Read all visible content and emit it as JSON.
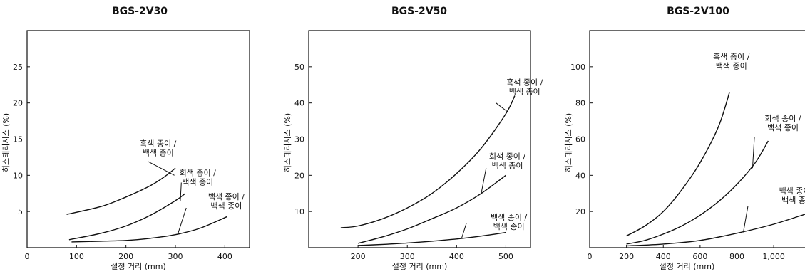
{
  "chart_data": [
    {
      "type": "line",
      "title": "BGS-2V30",
      "xlabel": "설정 거리 (mm)",
      "ylabel": "히스테리시스 (%)",
      "xlim": [
        0,
        450
      ],
      "ylim": [
        0,
        30
      ],
      "xticks": [
        0,
        100,
        200,
        300,
        400
      ],
      "yticks": [
        5,
        10,
        15,
        20,
        25
      ],
      "series": [
        {
          "name": "흑색 종이 / 백색 종이",
          "x": [
            80,
            150,
            200,
            250,
            280,
            300
          ],
          "y": [
            4.6,
            5.7,
            7.0,
            8.6,
            9.9,
            11.0
          ]
        },
        {
          "name": "회색 종이 / 백색 종이",
          "x": [
            85,
            150,
            200,
            250,
            300,
            320
          ],
          "y": [
            1.1,
            2.0,
            3.0,
            4.5,
            6.5,
            7.5
          ]
        },
        {
          "name": "백색 종이 / 백색 종이",
          "x": [
            90,
            150,
            200,
            250,
            300,
            350,
            405
          ],
          "y": [
            0.8,
            0.9,
            1.0,
            1.3,
            1.8,
            2.7,
            4.3
          ]
        }
      ],
      "annotations": [
        {
          "line1": "흑색 종이 /",
          "line2": "백색 종이",
          "x": 265,
          "y": 14.0,
          "pointer": [
            [
              245,
              11.9
            ],
            [
              298,
              10.0
            ]
          ]
        },
        {
          "line1": "회색 종이 /",
          "line2": "백색 종이",
          "x": 345,
          "y": 10.0,
          "pointer": [
            [
              312,
              9.0
            ],
            [
              310,
              6.5
            ]
          ]
        },
        {
          "line1": "백색 종이 /",
          "line2": "백색 종이",
          "x": 403,
          "y": 6.7,
          "pointer": [
            [
              322,
              5.5
            ],
            [
              305,
              1.9
            ]
          ]
        }
      ]
    },
    {
      "type": "line",
      "title": "BGS-2V50",
      "xlabel": "설정 거리 (mm)",
      "ylabel": "히스테리시스 (%)",
      "xlim": [
        100,
        550
      ],
      "ylim": [
        0,
        60
      ],
      "xticks": [
        200,
        300,
        400,
        500
      ],
      "yticks": [
        10,
        20,
        30,
        40,
        50
      ],
      "series": [
        {
          "name": "흑색 종이 / 백색 종이",
          "x": [
            165,
            200,
            250,
            300,
            350,
            400,
            450,
            500,
            518
          ],
          "y": [
            5.5,
            6.0,
            8.0,
            11.0,
            15.0,
            20.5,
            27.5,
            37.0,
            42.0
          ]
        },
        {
          "name": "회색 종이 / 백색 종이",
          "x": [
            200,
            250,
            300,
            350,
            400,
            450,
            500
          ],
          "y": [
            1.2,
            3.0,
            5.2,
            8.0,
            11.0,
            15.0,
            20.0
          ]
        },
        {
          "name": "백색 종이 / 백색 종이",
          "x": [
            200,
            250,
            300,
            350,
            400,
            450,
            500
          ],
          "y": [
            0.6,
            0.9,
            1.3,
            1.8,
            2.4,
            3.2,
            4.2
          ]
        }
      ],
      "annotations": [
        {
          "line1": "흑색 종이 /",
          "line2": "백색 종이",
          "x": 538,
          "y": 45.0,
          "pointer": [
            [
              480,
              40.0
            ],
            [
              504,
              37.5
            ]
          ]
        },
        {
          "line1": "회색 종이 /",
          "line2": "백색 종이",
          "x": 503,
          "y": 24.5,
          "pointer": [
            [
              460,
              22.0
            ],
            [
              450,
              15.0
            ]
          ]
        },
        {
          "line1": "백색 종이 /",
          "line2": "백색 종이",
          "x": 506,
          "y": 7.7,
          "pointer": [
            [
              420,
              6.8
            ],
            [
              410,
              2.5
            ]
          ]
        }
      ]
    },
    {
      "type": "line",
      "title": "BGS-2V100",
      "xlabel": "설정 거리 (mm)",
      "ylabel": "히스테리시스 (%)",
      "xlim": [
        0,
        1170
      ],
      "ylim": [
        0,
        120
      ],
      "xticks": [
        0,
        200,
        400,
        600,
        800,
        1000
      ],
      "xtick_labels": [
        "0",
        "200",
        "400",
        "600",
        "800",
        "1,000"
      ],
      "yticks": [
        20,
        40,
        60,
        80,
        100
      ],
      "series": [
        {
          "name": "흑색 종이 / 백색 종이",
          "x": [
            200,
            300,
            400,
            500,
            600,
            700,
            760
          ],
          "y": [
            6.5,
            12.0,
            20.0,
            32.0,
            47.0,
            67.0,
            86.0
          ]
        },
        {
          "name": "회색 종이 / 백색 종이",
          "x": [
            200,
            300,
            400,
            500,
            600,
            700,
            800,
            900,
            970
          ],
          "y": [
            2.0,
            4.0,
            7.5,
            12.0,
            18.0,
            25.5,
            35.0,
            47.0,
            59.0
          ]
        },
        {
          "name": "백색 종이 / 백색 종이",
          "x": [
            200,
            400,
            600,
            800,
            1000,
            1170
          ],
          "y": [
            1.0,
            2.0,
            4.0,
            8.0,
            13.0,
            18.5
          ]
        }
      ],
      "annotations": [
        {
          "line1": "흑색 종이 /",
          "line2": "백색 종이",
          "x": 770,
          "y": 104.0,
          "pointer": null
        },
        {
          "line1": "회색 종이 /",
          "line2": "백색 종이",
          "x": 1050,
          "y": 70.0,
          "pointer": [
            [
              895,
              61.0
            ],
            [
              885,
              44.0
            ]
          ]
        },
        {
          "line1": "백색 종이 /",
          "line2": "백색 종이",
          "x": 1128,
          "y": 30.0,
          "pointer": [
            [
              860,
              23.0
            ],
            [
              835,
              8.5
            ]
          ]
        }
      ]
    }
  ]
}
